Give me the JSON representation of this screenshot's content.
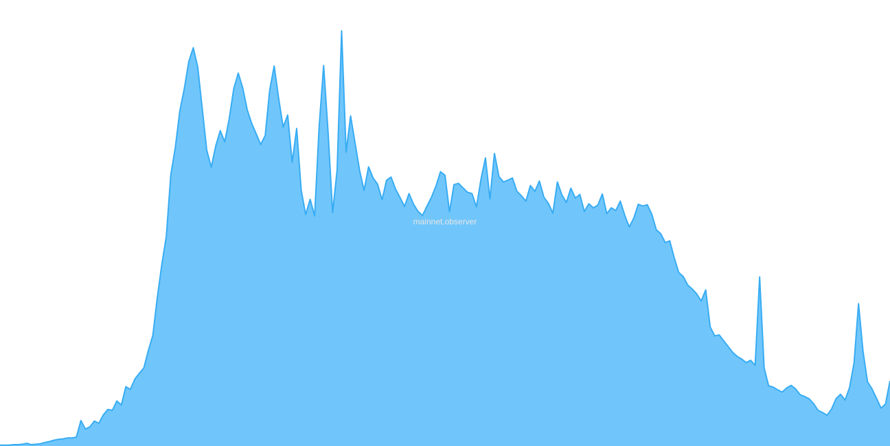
{
  "watermark": "mainnet.observer",
  "chart_data": {
    "type": "area",
    "title": "",
    "xlabel": "",
    "ylabel": "",
    "grid": false,
    "legend": "none",
    "ylim": [
      0,
      100
    ],
    "colors": {
      "fill": "#70c6fb",
      "line": "#38acf3"
    },
    "series": [
      {
        "values": [
          0.2,
          0.2,
          0.2,
          0.3,
          0.3,
          0.4,
          0.6,
          0.3,
          0.4,
          0.5,
          0.8,
          1.0,
          1.3,
          1.5,
          1.6,
          1.8,
          1.8,
          2.0,
          5.7,
          3.8,
          4.3,
          5.6,
          5.1,
          7.0,
          8.2,
          8.0,
          10.1,
          9.2,
          13.3,
          12.7,
          15.0,
          16.3,
          17.5,
          21.4,
          24.8,
          33.3,
          40.7,
          47.0,
          60.8,
          66.9,
          75.1,
          80.1,
          86.2,
          89.3,
          84.9,
          75.6,
          66.3,
          62.5,
          67.3,
          70.7,
          68.2,
          73.4,
          80.1,
          83.6,
          80.3,
          75.4,
          72.3,
          70.0,
          67.6,
          69.6,
          79.8,
          85.2,
          77.9,
          71.5,
          74.2,
          63.6,
          71.2,
          57.4,
          51.9,
          55.3,
          51.6,
          71.6,
          85.3,
          70.2,
          52.3,
          61.9,
          93.1,
          65.9,
          74.0,
          67.9,
          61.8,
          57.3,
          62.6,
          60.1,
          58.7,
          55.2,
          59.6,
          60.3,
          57.6,
          55.7,
          53.7,
          56.6,
          54.2,
          52.6,
          51.7,
          53.8,
          55.8,
          58.3,
          61.5,
          60.7,
          52.5,
          58.6,
          58.9,
          57.9,
          56.9,
          56.6,
          53.6,
          59.8,
          64.6,
          55.4,
          65.6,
          60.4,
          59.2,
          59.6,
          60.1,
          57.1,
          56.1,
          54.9,
          58.4,
          57.1,
          59.4,
          55.8,
          54.4,
          52.2,
          59.2,
          56.3,
          54.6,
          57.8,
          55.6,
          56.4,
          52.6,
          54.3,
          53.4,
          54.0,
          56.5,
          52.1,
          53.4,
          52.8,
          54.9,
          51.7,
          49.1,
          51.1,
          54.2,
          53.8,
          54.1,
          52.0,
          48.5,
          47.6,
          45.6,
          46.0,
          42.2,
          38.9,
          38.0,
          36.1,
          35.2,
          34.1,
          32.5,
          35.0,
          26.7,
          24.7,
          24.9,
          23.6,
          22.3,
          21.0,
          20.1,
          19.5,
          18.7,
          19.2,
          18.1,
          37.9,
          17.5,
          13.5,
          13.2,
          12.6,
          12.1,
          13.0,
          13.6,
          12.8,
          11.5,
          11.1,
          10.6,
          9.5,
          8.0,
          7.5,
          6.9,
          8.3,
          10.6,
          11.6,
          10.3,
          13.1,
          18.6,
          31.9,
          21.2,
          14.4,
          12.8,
          10.7,
          8.5,
          9.4,
          14.6
        ]
      }
    ]
  }
}
